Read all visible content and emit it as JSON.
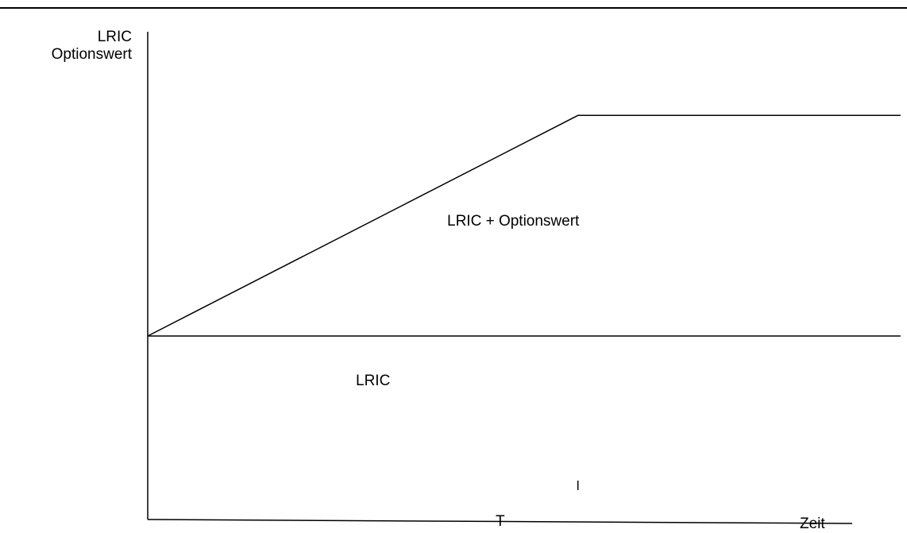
{
  "chart_data": {
    "type": "line",
    "title": "",
    "xlabel": "Zeit",
    "ylabel_lines": [
      "LRIC",
      "Optionswert"
    ],
    "x_ticks": [
      {
        "label": "T",
        "x": 1
      }
    ],
    "xlim": [
      0,
      1.8
    ],
    "ylim": [
      0,
      1.5
    ],
    "grid": false,
    "series": [
      {
        "name": "LRIC + Optionswert",
        "x": [
          0,
          1,
          1.75
        ],
        "y": [
          0.6,
          1.3,
          1.3
        ]
      },
      {
        "name": "LRIC",
        "x": [
          0,
          1.75
        ],
        "y": [
          0.6,
          0.6
        ]
      }
    ],
    "annotations": {
      "upper": "LRIC + Optionswert",
      "lower": "LRIC"
    },
    "colors": {
      "line": "#000000",
      "background": "#ffffff"
    }
  }
}
